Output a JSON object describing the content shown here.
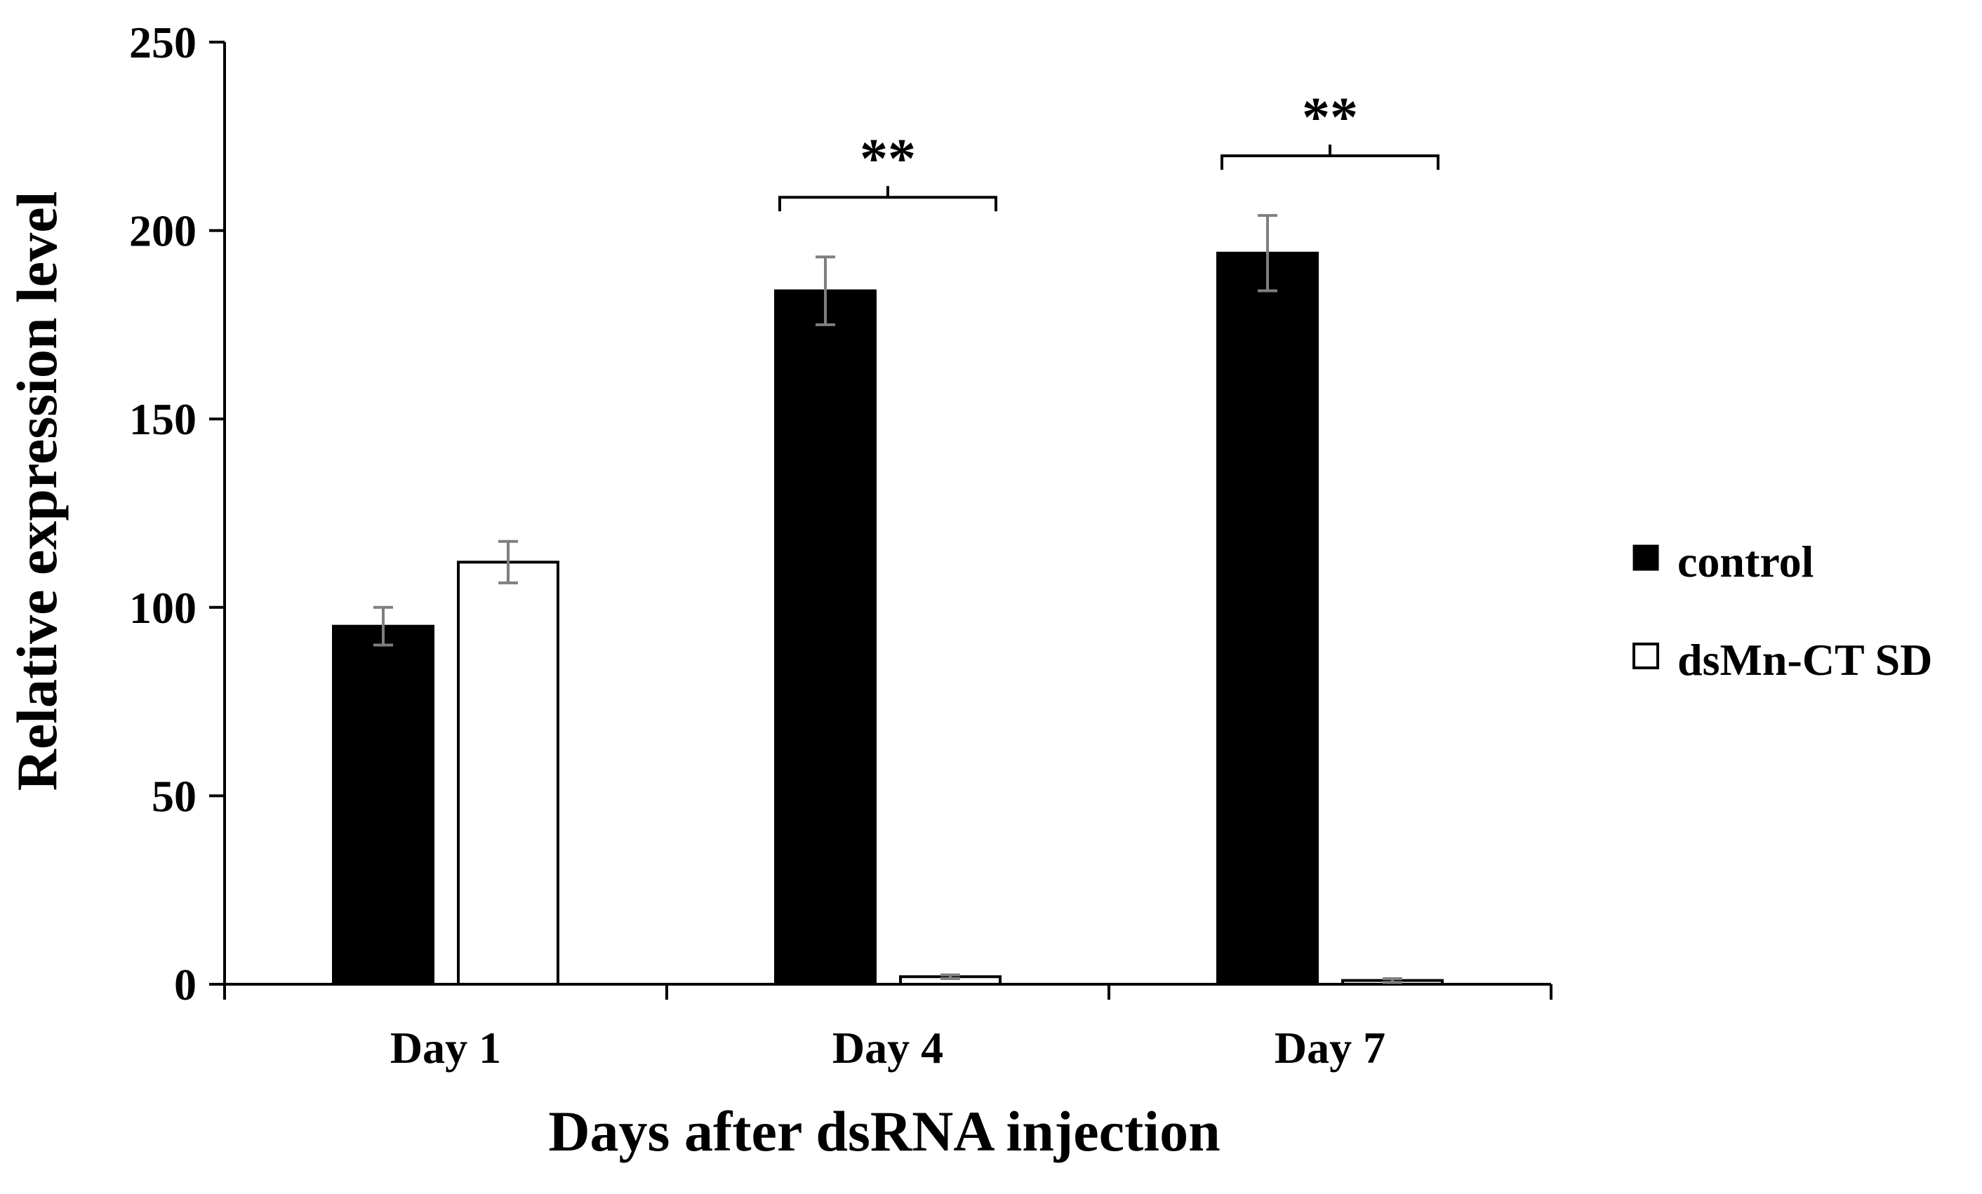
{
  "chart_data": {
    "type": "bar",
    "categories": [
      "Day 1",
      "Day 4",
      "Day 7"
    ],
    "series": [
      {
        "name": "control",
        "values": [
          95,
          184,
          194
        ],
        "errors": [
          5,
          9,
          10
        ],
        "fill": "#000000",
        "stroke": "#000000"
      },
      {
        "name": "dsMn-CT SD",
        "values": [
          112,
          2,
          1
        ],
        "errors": [
          5.5,
          0.5,
          0.5
        ],
        "fill": "#ffffff",
        "stroke": "#000000"
      }
    ],
    "xlabel": "Days after dsRNA injection",
    "ylabel": "Relative expression level",
    "ylim": [
      0,
      250
    ],
    "yticks": [
      "0",
      "50",
      "100",
      "150",
      "200",
      "250"
    ],
    "grid": false,
    "legend_position": "right",
    "error_bar_color": "#7f7f7f",
    "annotations": [
      {
        "category": "Day 4",
        "text": "**"
      },
      {
        "category": "Day 7",
        "text": "**"
      }
    ]
  }
}
